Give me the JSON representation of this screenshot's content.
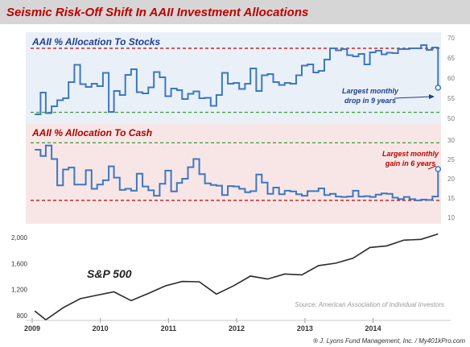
{
  "header": {
    "title": "Seismic Risk-Off Shift In AAII Investment Allocations"
  },
  "colors": {
    "title_bar": "#d6d6d6",
    "title_text": "#c00000",
    "stock_panel_bg": "#e9f0f8",
    "cash_panel_bg": "#f8e6e6",
    "series_line": "#3c78c0",
    "red_dash": "#c00000",
    "green_dash": "#3a9a3a",
    "stocks_title": "#1f3f8c",
    "cash_title": "#b00000",
    "spx_line": "#2a2a2a"
  },
  "footer": {
    "source": "Source: American Association of Individual Investors",
    "credit": "® J. Lyons Fund Management, Inc. / My401kPro.com"
  },
  "chart_data": [
    {
      "type": "line",
      "title": "AAII % Allocation To Stocks",
      "ylim": [
        50,
        70
      ],
      "yticks": [
        "50",
        "55",
        "60",
        "65",
        "70"
      ],
      "reference_lines": [
        {
          "value": 67.4,
          "style": "dashed",
          "color": "#c00000"
        },
        {
          "value": 51.5,
          "style": "dashed",
          "color": "#3a9a3a"
        }
      ],
      "annotation": {
        "text_lines": [
          "Largest monthly",
          "drop in 9 years"
        ],
        "color": "#1f3f8c"
      },
      "x": [
        "2009-01",
        "2009-02",
        "2009-03",
        "2009-04",
        "2009-05",
        "2009-06",
        "2009-07",
        "2009-08",
        "2009-09",
        "2009-10",
        "2009-11",
        "2009-12",
        "2010-01",
        "2010-02",
        "2010-03",
        "2010-04",
        "2010-05",
        "2010-06",
        "2010-07",
        "2010-08",
        "2010-09",
        "2010-10",
        "2010-11",
        "2010-12",
        "2011-01",
        "2011-02",
        "2011-03",
        "2011-04",
        "2011-05",
        "2011-06",
        "2011-07",
        "2011-08",
        "2011-09",
        "2011-10",
        "2011-11",
        "2011-12",
        "2012-01",
        "2012-02",
        "2012-03",
        "2012-04",
        "2012-05",
        "2012-06",
        "2012-07",
        "2012-08",
        "2012-09",
        "2012-10",
        "2012-11",
        "2012-12",
        "2013-01",
        "2013-02",
        "2013-03",
        "2013-04",
        "2013-05",
        "2013-06",
        "2013-07",
        "2013-08",
        "2013-09",
        "2013-10",
        "2013-11",
        "2013-12",
        "2014-01",
        "2014-02",
        "2014-03",
        "2014-04",
        "2014-05",
        "2014-06",
        "2014-07",
        "2014-08",
        "2014-09",
        "2014-10",
        "2014-11",
        "2014-12"
      ],
      "series": [
        {
          "values": [
            51.0,
            56.4,
            51.3,
            53.0,
            54.5,
            55.0,
            59.0,
            63.3,
            58.5,
            57.8,
            58.6,
            58.0,
            61.3,
            51.6,
            56.8,
            55.8,
            60.8,
            62.2,
            56.5,
            56.2,
            57.7,
            61.5,
            60.2,
            55.5,
            57.4,
            57.0,
            54.8,
            56.1,
            56.7,
            55.0,
            55.1,
            53.1,
            55.8,
            61.3,
            58.6,
            58.8,
            57.3,
            58.6,
            62.4,
            56.8,
            60.7,
            61.0,
            59.0,
            58.3,
            58.8,
            58.6,
            60.7,
            63.1,
            63.4,
            61.4,
            61.8,
            64.6,
            67.4,
            66.9,
            67.2,
            65.7,
            65.4,
            66.0,
            63.4,
            66.4,
            66.8,
            65.9,
            66.3,
            66.2,
            67.2,
            67.2,
            67.4,
            67.4,
            68.2,
            67.0,
            67.6,
            57.6
          ]
        }
      ]
    },
    {
      "type": "line",
      "title": "AAII % Allocation To Cash",
      "ylim": [
        10,
        30
      ],
      "yticks": [
        "10",
        "15",
        "20",
        "25",
        "30"
      ],
      "reference_lines": [
        {
          "value": 29.3,
          "style": "dashed",
          "color": "#3a9a3a"
        },
        {
          "value": 14.4,
          "style": "dashed",
          "color": "#c00000"
        }
      ],
      "annotation": {
        "text_lines": [
          "Largest monthly",
          "gain in 6 years"
        ],
        "color": "#c00000"
      },
      "x": [
        "2009-01",
        "2009-02",
        "2009-03",
        "2009-04",
        "2009-05",
        "2009-06",
        "2009-07",
        "2009-08",
        "2009-09",
        "2009-10",
        "2009-11",
        "2009-12",
        "2010-01",
        "2010-02",
        "2010-03",
        "2010-04",
        "2010-05",
        "2010-06",
        "2010-07",
        "2010-08",
        "2010-09",
        "2010-10",
        "2010-11",
        "2010-12",
        "2011-01",
        "2011-02",
        "2011-03",
        "2011-04",
        "2011-05",
        "2011-06",
        "2011-07",
        "2011-08",
        "2011-09",
        "2011-10",
        "2011-11",
        "2011-12",
        "2012-01",
        "2012-02",
        "2012-03",
        "2012-04",
        "2012-05",
        "2012-06",
        "2012-07",
        "2012-08",
        "2012-09",
        "2012-10",
        "2012-11",
        "2012-12",
        "2013-01",
        "2013-02",
        "2013-03",
        "2013-04",
        "2013-05",
        "2013-06",
        "2013-07",
        "2013-08",
        "2013-09",
        "2013-10",
        "2013-11",
        "2013-12",
        "2014-01",
        "2014-02",
        "2014-03",
        "2014-04",
        "2014-05",
        "2014-06",
        "2014-07",
        "2014-08",
        "2014-09",
        "2014-10",
        "2014-11",
        "2014-12"
      ],
      "series": [
        {
          "values": [
            27.5,
            25.9,
            28.6,
            25.1,
            18.3,
            22.4,
            22.9,
            18.5,
            18.5,
            22.2,
            17.4,
            18.5,
            19.6,
            23.2,
            20.3,
            17.1,
            17.4,
            16.9,
            21.3,
            18.0,
            17.0,
            15.6,
            18.7,
            22.1,
            16.7,
            18.9,
            20.0,
            23.0,
            25.1,
            21.2,
            18.8,
            18.4,
            18.2,
            15.8,
            18.1,
            18.0,
            17.4,
            16.5,
            16.8,
            21.1,
            19.0,
            16.1,
            17.7,
            16.0,
            16.9,
            16.7,
            16.0,
            15.6,
            16.8,
            16.8,
            17.5,
            15.8,
            16.1,
            15.4,
            15.3,
            15.4,
            16.9,
            15.4,
            15.5,
            15.3,
            15.9,
            16.2,
            16.1,
            15.1,
            14.7,
            15.3,
            14.7,
            14.4,
            14.6,
            14.5,
            15.4,
            22.5
          ]
        }
      ]
    },
    {
      "type": "line",
      "title": "S&P 500",
      "ylim": [
        800,
        2100
      ],
      "yticks": [
        "2,000",
        "1,600",
        "1,200",
        "800"
      ],
      "xticks": [
        "2009",
        "2010",
        "2011",
        "2012",
        "2013",
        "2014"
      ],
      "x": [
        "2009-01",
        "2009-03",
        "2009-06",
        "2009-09",
        "2009-12",
        "2010-03",
        "2010-06",
        "2010-09",
        "2010-12",
        "2011-03",
        "2011-06",
        "2011-09",
        "2011-12",
        "2012-03",
        "2012-06",
        "2012-09",
        "2012-12",
        "2013-03",
        "2013-06",
        "2013-09",
        "2013-12",
        "2014-03",
        "2014-06",
        "2014-09",
        "2014-12"
      ],
      "series": [
        {
          "values": [
            870,
            735,
            920,
            1060,
            1115,
            1165,
            1030,
            1140,
            1257,
            1325,
            1320,
            1130,
            1257,
            1408,
            1362,
            1440,
            1426,
            1569,
            1606,
            1682,
            1848,
            1872,
            1960,
            1972,
            2055
          ]
        }
      ]
    }
  ]
}
